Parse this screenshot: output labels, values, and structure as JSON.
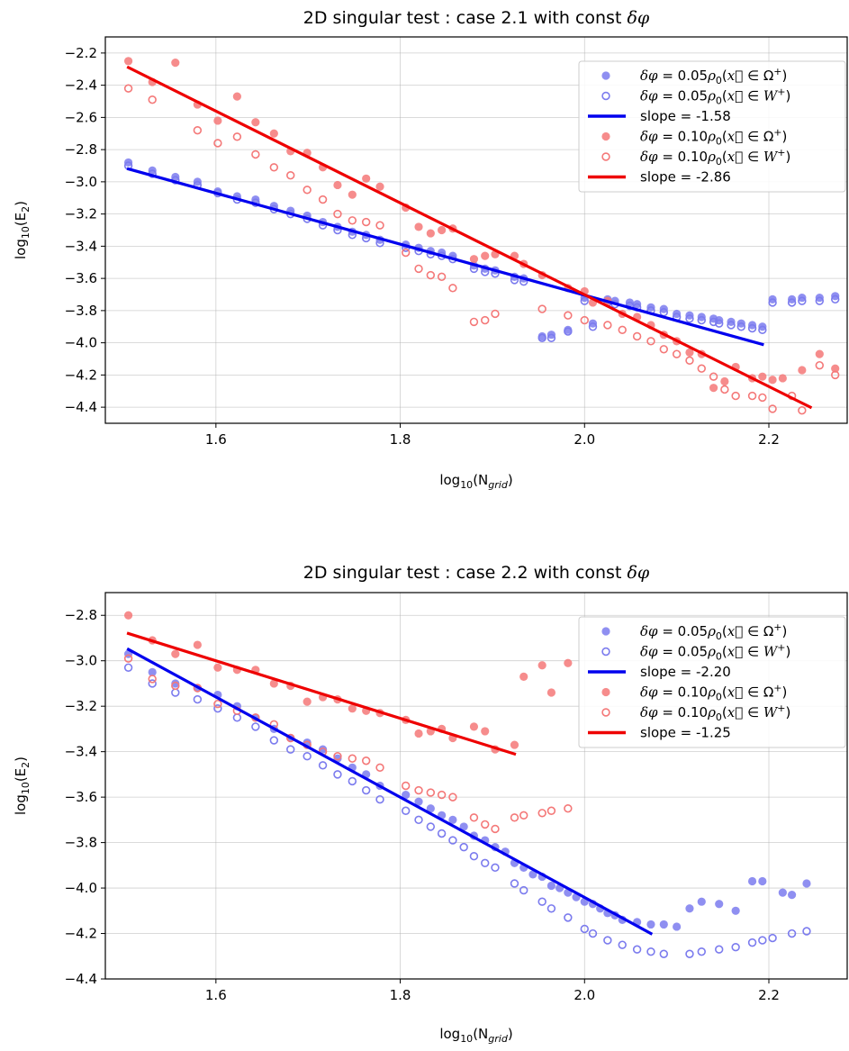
{
  "chart_data": [
    {
      "type": "scatter",
      "title_prefix": "2D singular test : case 2.1 with const ",
      "title_symbol": "δφ",
      "xlabel": "log",
      "xlabel_sub": "10",
      "xlabel_arg": "(N",
      "xlabel_arg_sub": "grid",
      "xlabel_close": ")",
      "ylabel": "log",
      "ylabel_sub": "10",
      "ylabel_arg": "(E",
      "ylabel_arg_sub": "2",
      "ylabel_close": ")",
      "xlim": [
        1.48,
        2.285
      ],
      "ylim": [
        -4.5,
        -2.1
      ],
      "xticks": [
        1.6,
        1.8,
        2.0,
        2.2
      ],
      "xtick_labels": [
        "1.6",
        "1.8",
        "2.0",
        "2.2"
      ],
      "yticks": [
        -2.2,
        -2.4,
        -2.6,
        -2.8,
        -3.0,
        -3.2,
        -3.4,
        -3.6,
        -3.8,
        -4.0,
        -4.2,
        -4.4
      ],
      "ytick_labels": [
        "−2.2",
        "−2.4",
        "−2.6",
        "−2.8",
        "−3.0",
        "−3.2",
        "−3.4",
        "−3.6",
        "−3.8",
        "−4.0",
        "−4.2",
        "−4.4"
      ],
      "grid": true,
      "legend_position": "top-right",
      "legend": [
        {
          "kind": "filled",
          "color": "#7b7bee",
          "label": "δφ = 0.05ρ₀(x⃗ ∈ Ω⁺)"
        },
        {
          "kind": "open",
          "color": "#7b7bee",
          "label": "δφ = 0.05ρ₀(x⃗ ∈ W⁺)"
        },
        {
          "kind": "line",
          "color": "#0000ee",
          "label": "slope = -1.58"
        },
        {
          "kind": "filled",
          "color": "#f47878",
          "label": "δφ = 0.10ρ₀(x⃗ ∈ Ω⁺)"
        },
        {
          "kind": "open",
          "color": "#f47878",
          "label": "δφ = 0.10ρ₀(x⃗ ∈ W⁺)"
        },
        {
          "kind": "line",
          "color": "#ee0000",
          "label": "slope = -2.86"
        }
      ],
      "series": [
        {
          "style": "filled",
          "color": "#7b7bee",
          "x": [
            1.505,
            1.531,
            1.556,
            1.58,
            1.602,
            1.623,
            1.643,
            1.663,
            1.681,
            1.699,
            1.716,
            1.732,
            1.748,
            1.763,
            1.778,
            1.806,
            1.82,
            1.833,
            1.845,
            1.857,
            1.88,
            1.892,
            1.903,
            1.924,
            1.934,
            1.954,
            1.964,
            1.982,
            2.0,
            2.009,
            2.025,
            2.033,
            2.049,
            2.057,
            2.072,
            2.086,
            2.1,
            2.114,
            2.127,
            2.14,
            2.146,
            2.159,
            2.17,
            2.182,
            2.193,
            2.204,
            2.225,
            2.236,
            2.255,
            2.272
          ],
          "y": [
            -2.88,
            -2.93,
            -2.97,
            -3.0,
            -3.06,
            -3.09,
            -3.11,
            -3.15,
            -3.18,
            -3.21,
            -3.25,
            -3.28,
            -3.31,
            -3.33,
            -3.36,
            -3.39,
            -3.41,
            -3.43,
            -3.44,
            -3.46,
            -3.52,
            -3.54,
            -3.55,
            -3.59,
            -3.6,
            -3.96,
            -3.95,
            -3.92,
            -3.72,
            -3.88,
            -3.73,
            -3.74,
            -3.75,
            -3.76,
            -3.78,
            -3.79,
            -3.82,
            -3.83,
            -3.84,
            -3.85,
            -3.86,
            -3.87,
            -3.88,
            -3.89,
            -3.9,
            -3.73,
            -3.73,
            -3.72,
            -3.72,
            -3.71
          ]
        },
        {
          "style": "open",
          "color": "#7b7bee",
          "x": [
            1.505,
            1.531,
            1.556,
            1.58,
            1.602,
            1.623,
            1.643,
            1.663,
            1.681,
            1.699,
            1.716,
            1.732,
            1.748,
            1.763,
            1.778,
            1.806,
            1.82,
            1.833,
            1.845,
            1.857,
            1.88,
            1.892,
            1.903,
            1.924,
            1.934,
            1.954,
            1.964,
            1.982,
            2.0,
            2.009,
            2.025,
            2.033,
            2.049,
            2.057,
            2.072,
            2.086,
            2.1,
            2.114,
            2.127,
            2.14,
            2.146,
            2.159,
            2.17,
            2.182,
            2.193,
            2.204,
            2.225,
            2.236,
            2.255,
            2.272
          ],
          "y": [
            -2.9,
            -2.95,
            -2.99,
            -3.02,
            -3.07,
            -3.11,
            -3.13,
            -3.17,
            -3.2,
            -3.23,
            -3.27,
            -3.3,
            -3.33,
            -3.35,
            -3.38,
            -3.41,
            -3.43,
            -3.45,
            -3.46,
            -3.48,
            -3.54,
            -3.56,
            -3.57,
            -3.61,
            -3.62,
            -3.97,
            -3.97,
            -3.93,
            -3.74,
            -3.9,
            -3.75,
            -3.76,
            -3.77,
            -3.78,
            -3.8,
            -3.81,
            -3.84,
            -3.85,
            -3.86,
            -3.87,
            -3.88,
            -3.89,
            -3.9,
            -3.91,
            -3.92,
            -3.75,
            -3.75,
            -3.74,
            -3.74,
            -3.73
          ]
        },
        {
          "style": "filled",
          "color": "#f47878",
          "x": [
            1.505,
            1.531,
            1.556,
            1.58,
            1.602,
            1.623,
            1.643,
            1.663,
            1.681,
            1.699,
            1.716,
            1.732,
            1.748,
            1.763,
            1.778,
            1.806,
            1.82,
            1.833,
            1.845,
            1.857,
            1.88,
            1.892,
            1.903,
            1.924,
            1.934,
            1.954,
            1.982,
            2.0,
            2.009,
            2.025,
            2.041,
            2.057,
            2.072,
            2.086,
            2.1,
            2.114,
            2.127,
            2.14,
            2.152,
            2.164,
            2.182,
            2.193,
            2.204,
            2.215,
            2.236,
            2.255,
            2.272
          ],
          "y": [
            -2.25,
            -2.38,
            -2.26,
            -2.52,
            -2.62,
            -2.47,
            -2.63,
            -2.7,
            -2.81,
            -2.82,
            -2.91,
            -3.02,
            -3.08,
            -2.98,
            -3.03,
            -3.16,
            -3.28,
            -3.32,
            -3.3,
            -3.29,
            -3.48,
            -3.46,
            -3.45,
            -3.46,
            -3.51,
            -3.58,
            -3.66,
            -3.68,
            -3.75,
            -3.74,
            -3.82,
            -3.84,
            -3.89,
            -3.95,
            -3.99,
            -4.06,
            -4.07,
            -4.28,
            -4.24,
            -4.15,
            -4.22,
            -4.21,
            -4.23,
            -4.22,
            -4.17,
            -4.07,
            -4.16
          ]
        },
        {
          "style": "open",
          "color": "#f47878",
          "x": [
            1.505,
            1.531,
            1.58,
            1.602,
            1.623,
            1.643,
            1.663,
            1.681,
            1.699,
            1.716,
            1.732,
            1.748,
            1.763,
            1.778,
            1.806,
            1.82,
            1.833,
            1.845,
            1.857,
            1.88,
            1.892,
            1.903,
            1.954,
            1.982,
            2.0,
            2.025,
            2.041,
            2.057,
            2.072,
            2.086,
            2.1,
            2.114,
            2.127,
            2.14,
            2.152,
            2.164,
            2.182,
            2.193,
            2.204,
            2.225,
            2.236,
            2.255,
            2.272
          ],
          "y": [
            -2.42,
            -2.49,
            -2.68,
            -2.76,
            -2.72,
            -2.83,
            -2.91,
            -2.96,
            -3.05,
            -3.11,
            -3.2,
            -3.24,
            -3.25,
            -3.27,
            -3.44,
            -3.54,
            -3.58,
            -3.59,
            -3.66,
            -3.87,
            -3.86,
            -3.82,
            -3.79,
            -3.83,
            -3.86,
            -3.89,
            -3.92,
            -3.96,
            -3.99,
            -4.04,
            -4.07,
            -4.11,
            -4.16,
            -4.21,
            -4.29,
            -4.33,
            -4.33,
            -4.34,
            -4.41,
            -4.33,
            -4.42,
            -4.14,
            -4.2
          ]
        }
      ],
      "fit_lines": [
        {
          "color": "#0000ee",
          "x": [
            1.505,
            2.193
          ],
          "y": [
            -2.92,
            -4.01
          ]
        },
        {
          "color": "#ee0000",
          "x": [
            1.505,
            2.245
          ],
          "y": [
            -2.29,
            -4.4
          ]
        }
      ]
    },
    {
      "type": "scatter",
      "title_prefix": "2D singular test : case 2.2 with const ",
      "title_symbol": "δφ",
      "xlabel": "log",
      "xlabel_sub": "10",
      "xlabel_arg": "(N",
      "xlabel_arg_sub": "grid",
      "xlabel_close": ")",
      "ylabel": "log",
      "ylabel_sub": "10",
      "ylabel_arg": "(E",
      "ylabel_arg_sub": "2",
      "ylabel_close": ")",
      "xlim": [
        1.48,
        2.285
      ],
      "ylim": [
        -4.4,
        -2.7
      ],
      "xticks": [
        1.6,
        1.8,
        2.0,
        2.2
      ],
      "xtick_labels": [
        "1.6",
        "1.8",
        "2.0",
        "2.2"
      ],
      "yticks": [
        -2.8,
        -3.0,
        -3.2,
        -3.4,
        -3.6,
        -3.8,
        -4.0,
        -4.2,
        -4.4
      ],
      "ytick_labels": [
        "−2.8",
        "−3.0",
        "−3.2",
        "−3.4",
        "−3.6",
        "−3.8",
        "−4.0",
        "−4.2",
        "−4.4"
      ],
      "grid": true,
      "legend_position": "top-right",
      "legend": [
        {
          "kind": "filled",
          "color": "#7b7bee",
          "label": "δφ = 0.05ρ₀(x⃗ ∈ Ω⁺)"
        },
        {
          "kind": "open",
          "color": "#7b7bee",
          "label": "δφ = 0.05ρ₀(x⃗ ∈ W⁺)"
        },
        {
          "kind": "line",
          "color": "#0000ee",
          "label": "slope = -2.20"
        },
        {
          "kind": "filled",
          "color": "#f47878",
          "label": "δφ = 0.10ρ₀(x⃗ ∈ Ω⁺)"
        },
        {
          "kind": "open",
          "color": "#f47878",
          "label": "δφ = 0.10ρ₀(x⃗ ∈ W⁺)"
        },
        {
          "kind": "line",
          "color": "#ee0000",
          "label": "slope = -1.25"
        }
      ],
      "series": [
        {
          "style": "filled",
          "color": "#7b7bee",
          "x": [
            1.505,
            1.531,
            1.556,
            1.58,
            1.602,
            1.623,
            1.643,
            1.663,
            1.681,
            1.699,
            1.716,
            1.732,
            1.748,
            1.763,
            1.778,
            1.806,
            1.82,
            1.833,
            1.845,
            1.857,
            1.869,
            1.88,
            1.892,
            1.903,
            1.914,
            1.924,
            1.934,
            1.944,
            1.954,
            1.964,
            1.973,
            1.982,
            1.991,
            2.0,
            2.009,
            2.017,
            2.025,
            2.033,
            2.041,
            2.057,
            2.072,
            2.086,
            2.1,
            2.114,
            2.127,
            2.146,
            2.164,
            2.182,
            2.193,
            2.215,
            2.225,
            2.241
          ],
          "y": [
            -2.97,
            -3.05,
            -3.1,
            -3.12,
            -3.15,
            -3.2,
            -3.25,
            -3.3,
            -3.34,
            -3.36,
            -3.39,
            -3.43,
            -3.47,
            -3.5,
            -3.55,
            -3.59,
            -3.62,
            -3.65,
            -3.68,
            -3.7,
            -3.73,
            -3.77,
            -3.79,
            -3.82,
            -3.84,
            -3.89,
            -3.91,
            -3.94,
            -3.95,
            -3.99,
            -4.0,
            -4.02,
            -4.04,
            -4.06,
            -4.07,
            -4.09,
            -4.11,
            -4.12,
            -4.14,
            -4.15,
            -4.16,
            -4.16,
            -4.17,
            -4.09,
            -4.06,
            -4.07,
            -4.1,
            -3.97,
            -3.97,
            -4.02,
            -4.03,
            -3.98
          ]
        },
        {
          "style": "open",
          "color": "#7b7bee",
          "x": [
            1.505,
            1.531,
            1.556,
            1.58,
            1.602,
            1.623,
            1.643,
            1.663,
            1.681,
            1.699,
            1.716,
            1.732,
            1.748,
            1.763,
            1.778,
            1.806,
            1.82,
            1.833,
            1.845,
            1.857,
            1.869,
            1.88,
            1.892,
            1.903,
            1.924,
            1.934,
            1.954,
            1.964,
            1.982,
            2.0,
            2.009,
            2.025,
            2.041,
            2.057,
            2.072,
            2.086,
            2.114,
            2.127,
            2.146,
            2.164,
            2.182,
            2.193,
            2.204,
            2.225,
            2.241
          ],
          "y": [
            -3.03,
            -3.1,
            -3.14,
            -3.17,
            -3.21,
            -3.25,
            -3.29,
            -3.35,
            -3.39,
            -3.42,
            -3.46,
            -3.5,
            -3.53,
            -3.57,
            -3.61,
            -3.66,
            -3.7,
            -3.73,
            -3.76,
            -3.79,
            -3.82,
            -3.86,
            -3.89,
            -3.91,
            -3.98,
            -4.01,
            -4.06,
            -4.09,
            -4.13,
            -4.18,
            -4.2,
            -4.23,
            -4.25,
            -4.27,
            -4.28,
            -4.29,
            -4.29,
            -4.28,
            -4.27,
            -4.26,
            -4.24,
            -4.23,
            -4.22,
            -4.2,
            -4.19
          ]
        },
        {
          "style": "filled",
          "color": "#f47878",
          "x": [
            1.505,
            1.531,
            1.556,
            1.58,
            1.602,
            1.623,
            1.643,
            1.663,
            1.681,
            1.699,
            1.716,
            1.732,
            1.748,
            1.763,
            1.778,
            1.806,
            1.82,
            1.833,
            1.845,
            1.857,
            1.88,
            1.892,
            1.903,
            1.924,
            1.934,
            1.954,
            1.964,
            1.982
          ],
          "y": [
            -2.8,
            -2.91,
            -2.97,
            -2.93,
            -3.03,
            -3.04,
            -3.04,
            -3.1,
            -3.11,
            -3.18,
            -3.16,
            -3.17,
            -3.21,
            -3.22,
            -3.23,
            -3.26,
            -3.32,
            -3.31,
            -3.3,
            -3.34,
            -3.29,
            -3.31,
            -3.39,
            -3.37,
            -3.07,
            -3.02,
            -3.14,
            -3.01
          ]
        },
        {
          "style": "open",
          "color": "#f47878",
          "x": [
            1.505,
            1.531,
            1.556,
            1.58,
            1.602,
            1.623,
            1.643,
            1.663,
            1.681,
            1.699,
            1.716,
            1.732,
            1.748,
            1.763,
            1.778,
            1.806,
            1.82,
            1.833,
            1.845,
            1.857,
            1.88,
            1.892,
            1.903,
            1.924,
            1.934,
            1.954,
            1.964,
            1.982
          ],
          "y": [
            -2.99,
            -3.08,
            -3.11,
            -3.12,
            -3.19,
            -3.22,
            -3.25,
            -3.28,
            -3.34,
            -3.37,
            -3.4,
            -3.42,
            -3.43,
            -3.44,
            -3.47,
            -3.55,
            -3.57,
            -3.58,
            -3.59,
            -3.6,
            -3.69,
            -3.72,
            -3.74,
            -3.69,
            -3.68,
            -3.67,
            -3.66,
            -3.65
          ]
        }
      ],
      "fit_lines": [
        {
          "color": "#0000ee",
          "x": [
            1.505,
            2.072
          ],
          "y": [
            -2.95,
            -4.2
          ]
        },
        {
          "color": "#ee0000",
          "x": [
            1.505,
            1.924
          ],
          "y": [
            -2.88,
            -3.41
          ]
        }
      ]
    }
  ]
}
